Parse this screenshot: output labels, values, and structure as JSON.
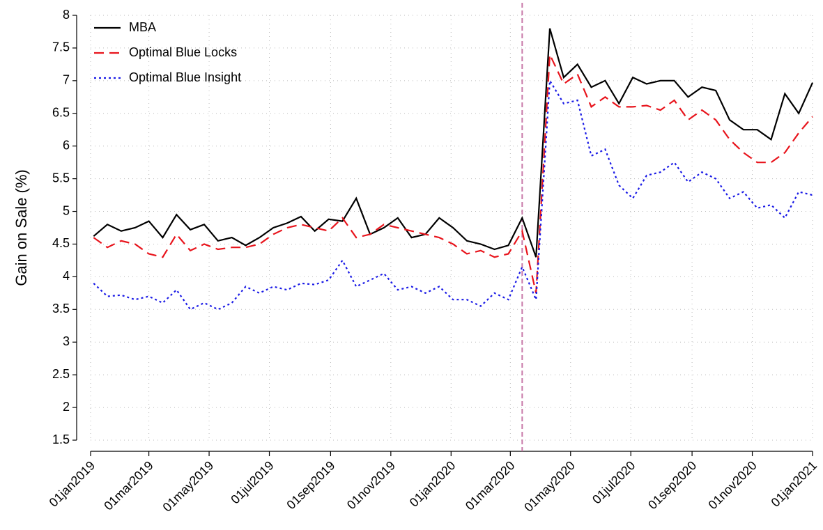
{
  "chart_data": {
    "type": "line",
    "y_label": "Gain on Sale (%)",
    "x": [
      "2019-01-04",
      "2019-01-18",
      "2019-02-01",
      "2019-02-15",
      "2019-03-01",
      "2019-03-15",
      "2019-03-29",
      "2019-04-12",
      "2019-04-26",
      "2019-05-10",
      "2019-05-24",
      "2019-06-07",
      "2019-06-21",
      "2019-07-05",
      "2019-07-19",
      "2019-08-02",
      "2019-08-16",
      "2019-08-30",
      "2019-09-13",
      "2019-09-27",
      "2019-10-11",
      "2019-10-25",
      "2019-11-08",
      "2019-11-22",
      "2019-12-06",
      "2019-12-20",
      "2020-01-03",
      "2020-01-17",
      "2020-01-31",
      "2020-02-14",
      "2020-02-28",
      "2020-03-13",
      "2020-03-27",
      "2020-04-10",
      "2020-04-24",
      "2020-05-08",
      "2020-05-22",
      "2020-06-05",
      "2020-06-19",
      "2020-07-03",
      "2020-07-17",
      "2020-07-31",
      "2020-08-14",
      "2020-08-28",
      "2020-09-11",
      "2020-09-25",
      "2020-10-09",
      "2020-10-23",
      "2020-11-06",
      "2020-11-20",
      "2020-12-04",
      "2020-12-18",
      "2021-01-01"
    ],
    "series": [
      {
        "name": "MBA",
        "color": "#000000",
        "dash": "solid",
        "values": [
          4.62,
          4.8,
          4.7,
          4.75,
          4.85,
          4.6,
          4.95,
          4.72,
          4.8,
          4.55,
          4.6,
          4.48,
          4.6,
          4.75,
          4.82,
          4.92,
          4.7,
          4.88,
          4.85,
          5.2,
          4.65,
          4.75,
          4.9,
          4.6,
          4.65,
          4.9,
          4.75,
          4.55,
          4.5,
          4.42,
          4.48,
          4.9,
          4.3,
          7.8,
          7.05,
          7.25,
          6.9,
          7.0,
          6.65,
          7.05,
          6.95,
          7.0,
          7.0,
          6.75,
          6.9,
          6.85,
          6.4,
          6.25,
          6.25,
          6.1,
          6.8,
          6.5,
          6.97
        ]
      },
      {
        "name": "Optimal Blue Locks",
        "color": "#e8141c",
        "dash": "dashed",
        "values": [
          4.6,
          4.45,
          4.55,
          4.5,
          4.35,
          4.3,
          4.65,
          4.4,
          4.5,
          4.42,
          4.45,
          4.45,
          4.5,
          4.65,
          4.75,
          4.8,
          4.75,
          4.7,
          4.9,
          4.6,
          4.65,
          4.8,
          4.75,
          4.7,
          4.65,
          4.6,
          4.5,
          4.35,
          4.4,
          4.3,
          4.35,
          4.7,
          3.75,
          7.4,
          6.95,
          7.1,
          6.6,
          6.75,
          6.6,
          6.6,
          6.62,
          6.55,
          6.7,
          6.4,
          6.55,
          6.4,
          6.1,
          5.9,
          5.75,
          5.75,
          5.9,
          6.2,
          6.45
        ]
      },
      {
        "name": "Optimal Blue Insight",
        "color": "#1a1ae6",
        "dash": "dotted",
        "values": [
          3.9,
          3.7,
          3.72,
          3.65,
          3.7,
          3.6,
          3.8,
          3.5,
          3.6,
          3.5,
          3.6,
          3.85,
          3.75,
          3.85,
          3.8,
          3.9,
          3.88,
          3.95,
          4.25,
          3.85,
          3.95,
          4.05,
          3.8,
          3.85,
          3.75,
          3.85,
          3.65,
          3.65,
          3.55,
          3.75,
          3.65,
          4.15,
          3.65,
          7.0,
          6.65,
          6.7,
          5.85,
          5.95,
          5.4,
          5.2,
          5.55,
          5.6,
          5.75,
          5.45,
          5.6,
          5.5,
          5.2,
          5.3,
          5.05,
          5.1,
          4.9,
          5.3,
          5.25
        ]
      }
    ],
    "reference_line": {
      "x": "2020-03-13",
      "color": "#c878a8"
    },
    "xlim": [
      "2019-01-01",
      "2021-01-01"
    ],
    "xticks": [
      {
        "value": "2019-01-01",
        "label": "01jan2019"
      },
      {
        "value": "2019-03-01",
        "label": "01mar2019"
      },
      {
        "value": "2019-05-01",
        "label": "01may2019"
      },
      {
        "value": "2019-07-01",
        "label": "01jul2019"
      },
      {
        "value": "2019-09-01",
        "label": "01sep2019"
      },
      {
        "value": "2019-11-01",
        "label": "01nov2019"
      },
      {
        "value": "2020-01-01",
        "label": "01jan2020"
      },
      {
        "value": "2020-03-01",
        "label": "01mar2020"
      },
      {
        "value": "2020-05-01",
        "label": "01may2020"
      },
      {
        "value": "2020-07-01",
        "label": "01jul2020"
      },
      {
        "value": "2020-09-01",
        "label": "01sep2020"
      },
      {
        "value": "2020-11-01",
        "label": "01nov2020"
      },
      {
        "value": "2021-01-01",
        "label": "01jan2021"
      }
    ],
    "ylim": [
      1.5,
      8
    ],
    "yticks": [
      1.5,
      2,
      2.5,
      3,
      3.5,
      4,
      4.5,
      5,
      5.5,
      6,
      6.5,
      7,
      7.5,
      8
    ],
    "grid": true,
    "legend": "top-left"
  }
}
